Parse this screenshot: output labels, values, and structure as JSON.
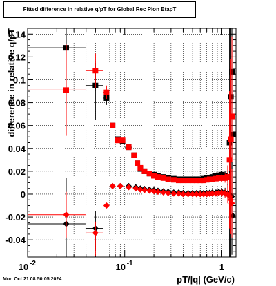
{
  "title": "Fitted difference in relative q/pT for Global Rec Pion EtapT",
  "timestamp": "Mon Oct 21 08:50:05 2024",
  "chart_data": {
    "type": "scatter",
    "title": "Fitted difference in relative q/pT for Global Rec Pion EtapT",
    "xlabel": "pT/|q| (GeV/c)",
    "ylabel": "difference in relative q/pT",
    "xscale": "log",
    "xlim": [
      0.01,
      1.4
    ],
    "ylim": [
      -0.055,
      0.145
    ],
    "grid": true,
    "legend": "none",
    "x_ticks": [
      {
        "v": 0.01,
        "major": true,
        "label": "10",
        "exp": "-2"
      },
      {
        "v": 0.1,
        "major": true,
        "label": "10",
        "exp": "-1"
      },
      {
        "v": 1,
        "major": true,
        "label": "1",
        "exp": ""
      }
    ],
    "y_ticks": [
      "-0.04",
      "-0.02",
      "0",
      "0.02",
      "0.04",
      "0.06",
      "0.08",
      "0.1",
      "0.12",
      "0.14"
    ],
    "y_tick_values": [
      -0.04,
      -0.02,
      0,
      0.02,
      0.04,
      0.06,
      0.08,
      0.1,
      0.12,
      0.14
    ],
    "series": [
      {
        "color": "#000000",
        "marker": "square",
        "points": [
          {
            "x": 0.025,
            "y": 0.128,
            "xlo": 0.01,
            "xhi": 0.0395,
            "elo": 0.075,
            "ehi": 0.02
          },
          {
            "x": 0.05,
            "y": 0.095,
            "xlo": 0.0395,
            "xhi": 0.0605,
            "elo": 0.03,
            "ehi": 0.02
          },
          {
            "x": 0.065,
            "y": 0.084,
            "xlo": 0.0605,
            "xhi": 0.0695,
            "elo": 0.006,
            "ehi": 0.006
          },
          {
            "x": 0.075,
            "y": 0.06,
            "xlo": 0.0705,
            "xhi": 0.0795,
            "elo": 0.0015,
            "ehi": 0.0015
          },
          {
            "x": 0.085,
            "y": 0.048,
            "xlo": 0.0805,
            "xhi": 0.0895,
            "elo": 0.001,
            "ehi": 0.001
          },
          {
            "x": 0.095,
            "y": 0.046,
            "xlo": 0.0905,
            "xhi": 0.0995,
            "elo": 0.001,
            "ehi": 0.001
          },
          {
            "x": 0.11,
            "y": 0.041,
            "xlo": 0.1,
            "xhi": 0.12,
            "elo": 0.001,
            "ehi": 0.001
          },
          {
            "x": 0.125,
            "y": 0.034,
            "elo": 0.001,
            "ehi": 0.001
          },
          {
            "x": 0.135,
            "y": 0.027,
            "elo": 0.001,
            "ehi": 0.001
          },
          {
            "x": 0.145,
            "y": 0.022,
            "elo": 0.001,
            "ehi": 0.001
          },
          {
            "x": 0.16,
            "y": 0.02,
            "elo": 0.001,
            "ehi": 0.001
          },
          {
            "x": 0.18,
            "y": 0.018,
            "elo": 0.001,
            "ehi": 0.001
          },
          {
            "x": 0.2,
            "y": 0.017,
            "elo": 0.001,
            "ehi": 0.001
          },
          {
            "x": 0.22,
            "y": 0.016,
            "elo": 0.001,
            "ehi": 0.001
          },
          {
            "x": 0.25,
            "y": 0.015,
            "elo": 0.001,
            "ehi": 0.001
          },
          {
            "x": 0.28,
            "y": 0.014,
            "elo": 0.001,
            "ehi": 0.001
          },
          {
            "x": 0.32,
            "y": 0.0135,
            "elo": 0.001,
            "ehi": 0.001
          },
          {
            "x": 0.36,
            "y": 0.013,
            "elo": 0.001,
            "ehi": 0.001
          },
          {
            "x": 0.4,
            "y": 0.013,
            "elo": 0.001,
            "ehi": 0.001
          },
          {
            "x": 0.45,
            "y": 0.013,
            "elo": 0.001,
            "ehi": 0.001
          },
          {
            "x": 0.5,
            "y": 0.013,
            "elo": 0.001,
            "ehi": 0.001
          },
          {
            "x": 0.55,
            "y": 0.013,
            "elo": 0.001,
            "ehi": 0.001
          },
          {
            "x": 0.6,
            "y": 0.013,
            "elo": 0.001,
            "ehi": 0.001
          },
          {
            "x": 0.65,
            "y": 0.0135,
            "elo": 0.001,
            "ehi": 0.001
          },
          {
            "x": 0.7,
            "y": 0.014,
            "elo": 0.001,
            "ehi": 0.001
          },
          {
            "x": 0.75,
            "y": 0.0145,
            "elo": 0.001,
            "ehi": 0.001
          },
          {
            "x": 0.8,
            "y": 0.015,
            "elo": 0.001,
            "ehi": 0.001
          },
          {
            "x": 0.87,
            "y": 0.016,
            "elo": 0.001,
            "ehi": 0.001
          },
          {
            "x": 0.93,
            "y": 0.0165,
            "elo": 0.002,
            "ehi": 0.002
          },
          {
            "x": 1.0,
            "y": 0.017,
            "elo": 0.003,
            "ehi": 0.003
          },
          {
            "x": 1.08,
            "y": 0.016,
            "elo": 0.004,
            "ehi": 0.004
          },
          {
            "x": 1.15,
            "y": 0.015,
            "elo": 0.01,
            "ehi": 0.01
          },
          {
            "x": 1.2,
            "y": 0.045,
            "elo": 0.1,
            "ehi": 0.1
          },
          {
            "x": 1.24,
            "y": 0.085,
            "elo": 0.14,
            "ehi": 0.06
          },
          {
            "x": 1.27,
            "y": 0.107,
            "elo": 0.16,
            "ehi": 0.04
          },
          {
            "x": 1.3,
            "y": 0.052,
            "elo": 0.1,
            "ehi": 0.1
          }
        ]
      },
      {
        "color": "#ff0000",
        "marker": "square",
        "points": [
          {
            "x": 0.025,
            "y": 0.091,
            "xlo": 0.01,
            "xhi": 0.0395,
            "elo": 0.04,
            "ehi": 0.04
          },
          {
            "x": 0.05,
            "y": 0.108,
            "xlo": 0.0395,
            "xhi": 0.0605,
            "elo": 0.015,
            "ehi": 0.015
          },
          {
            "x": 0.065,
            "y": 0.089,
            "xlo": 0.0605,
            "xhi": 0.0695,
            "elo": 0.006,
            "ehi": 0.006
          },
          {
            "x": 0.075,
            "y": 0.06,
            "elo": 0.0015,
            "ehi": 0.0015
          },
          {
            "x": 0.085,
            "y": 0.047,
            "elo": 0.001,
            "ehi": 0.001
          },
          {
            "x": 0.095,
            "y": 0.047,
            "elo": 0.001,
            "ehi": 0.001
          },
          {
            "x": 0.11,
            "y": 0.041,
            "elo": 0.001,
            "ehi": 0.001
          },
          {
            "x": 0.125,
            "y": 0.034,
            "elo": 0.001,
            "ehi": 0.001
          },
          {
            "x": 0.135,
            "y": 0.027,
            "elo": 0.001,
            "ehi": 0.001
          },
          {
            "x": 0.145,
            "y": 0.023,
            "elo": 0.001,
            "ehi": 0.001
          },
          {
            "x": 0.16,
            "y": 0.02,
            "elo": 0.001,
            "ehi": 0.001
          },
          {
            "x": 0.18,
            "y": 0.018,
            "elo": 0.001,
            "ehi": 0.001
          },
          {
            "x": 0.2,
            "y": 0.016,
            "elo": 0.001,
            "ehi": 0.001
          },
          {
            "x": 0.22,
            "y": 0.015,
            "elo": 0.001,
            "ehi": 0.001
          },
          {
            "x": 0.25,
            "y": 0.014,
            "elo": 0.001,
            "ehi": 0.001
          },
          {
            "x": 0.28,
            "y": 0.013,
            "elo": 0.001,
            "ehi": 0.001
          },
          {
            "x": 0.32,
            "y": 0.0125,
            "elo": 0.001,
            "ehi": 0.001
          },
          {
            "x": 0.36,
            "y": 0.012,
            "elo": 0.001,
            "ehi": 0.001
          },
          {
            "x": 0.4,
            "y": 0.012,
            "elo": 0.001,
            "ehi": 0.001
          },
          {
            "x": 0.45,
            "y": 0.012,
            "elo": 0.001,
            "ehi": 0.001
          },
          {
            "x": 0.5,
            "y": 0.012,
            "elo": 0.001,
            "ehi": 0.001
          },
          {
            "x": 0.55,
            "y": 0.012,
            "elo": 0.001,
            "ehi": 0.001
          },
          {
            "x": 0.6,
            "y": 0.012,
            "elo": 0.001,
            "ehi": 0.001
          },
          {
            "x": 0.65,
            "y": 0.012,
            "elo": 0.001,
            "ehi": 0.001
          },
          {
            "x": 0.7,
            "y": 0.0125,
            "elo": 0.001,
            "ehi": 0.001
          },
          {
            "x": 0.75,
            "y": 0.013,
            "elo": 0.001,
            "ehi": 0.001
          },
          {
            "x": 0.8,
            "y": 0.013,
            "elo": 0.001,
            "ehi": 0.001
          },
          {
            "x": 0.87,
            "y": 0.0135,
            "elo": 0.001,
            "ehi": 0.001
          },
          {
            "x": 0.93,
            "y": 0.014,
            "elo": 0.002,
            "ehi": 0.002
          },
          {
            "x": 1.0,
            "y": 0.014,
            "elo": 0.003,
            "ehi": 0.003
          },
          {
            "x": 1.08,
            "y": 0.014,
            "elo": 0.004,
            "ehi": 0.004
          },
          {
            "x": 1.15,
            "y": 0.015,
            "elo": 0.01,
            "ehi": 0.01
          },
          {
            "x": 1.2,
            "y": 0.03,
            "elo": 0.06,
            "ehi": 0.06
          },
          {
            "x": 1.24,
            "y": 0.048,
            "elo": 0.07,
            "ehi": 0.07
          },
          {
            "x": 1.27,
            "y": 0.068,
            "elo": 0.07,
            "ehi": 0.07
          }
        ]
      },
      {
        "color": "#000000",
        "marker": "diamond",
        "points": [
          {
            "x": 0.025,
            "y": -0.026,
            "xlo": 0.01,
            "xhi": 0.0395,
            "elo": 0.03,
            "ehi": 0.04
          },
          {
            "x": 0.05,
            "y": -0.03,
            "xlo": 0.0395,
            "xhi": 0.0605,
            "elo": 0.02,
            "ehi": 0.015
          },
          {
            "x": 0.075,
            "y": 0.007,
            "elo": 0.001,
            "ehi": 0.001
          },
          {
            "x": 0.09,
            "y": 0.007,
            "elo": 0.001,
            "ehi": 0.001
          },
          {
            "x": 0.11,
            "y": 0.007,
            "elo": 0.001,
            "ehi": 0.001
          },
          {
            "x": 0.13,
            "y": 0.006,
            "elo": 0.001,
            "ehi": 0.001
          },
          {
            "x": 0.145,
            "y": 0.005,
            "elo": 0.001,
            "ehi": 0.001
          },
          {
            "x": 0.16,
            "y": 0.0045,
            "elo": 0.001,
            "ehi": 0.001
          },
          {
            "x": 0.18,
            "y": 0.004,
            "elo": 0.001,
            "ehi": 0.001
          },
          {
            "x": 0.2,
            "y": 0.0035,
            "elo": 0.001,
            "ehi": 0.001
          },
          {
            "x": 0.22,
            "y": 0.003,
            "elo": 0.001,
            "ehi": 0.001
          },
          {
            "x": 0.25,
            "y": 0.0025,
            "elo": 0.001,
            "ehi": 0.001
          },
          {
            "x": 0.28,
            "y": 0.002,
            "elo": 0.001,
            "ehi": 0.001
          },
          {
            "x": 0.32,
            "y": 0.0015,
            "elo": 0.001,
            "ehi": 0.001
          },
          {
            "x": 0.36,
            "y": 0.0015,
            "elo": 0.001,
            "ehi": 0.001
          },
          {
            "x": 0.4,
            "y": 0.001,
            "elo": 0.001,
            "ehi": 0.001
          },
          {
            "x": 0.45,
            "y": 0.001,
            "elo": 0.001,
            "ehi": 0.001
          },
          {
            "x": 0.5,
            "y": 0.001,
            "elo": 0.001,
            "ehi": 0.001
          },
          {
            "x": 0.55,
            "y": 0.001,
            "elo": 0.001,
            "ehi": 0.001
          },
          {
            "x": 0.6,
            "y": 0.001,
            "elo": 0.001,
            "ehi": 0.001
          },
          {
            "x": 0.65,
            "y": 0.001,
            "elo": 0.001,
            "ehi": 0.001
          },
          {
            "x": 0.7,
            "y": 0.001,
            "elo": 0.001,
            "ehi": 0.001
          },
          {
            "x": 0.75,
            "y": 0.0012,
            "elo": 0.001,
            "ehi": 0.001
          },
          {
            "x": 0.8,
            "y": 0.0015,
            "elo": 0.001,
            "ehi": 0.001
          },
          {
            "x": 0.87,
            "y": 0.0015,
            "elo": 0.001,
            "ehi": 0.001
          },
          {
            "x": 0.93,
            "y": 0.002,
            "elo": 0.002,
            "ehi": 0.002
          },
          {
            "x": 1.0,
            "y": 0.002,
            "elo": 0.003,
            "ehi": 0.003
          },
          {
            "x": 1.08,
            "y": 0.0015,
            "elo": 0.004,
            "ehi": 0.004
          },
          {
            "x": 1.15,
            "y": 0.001,
            "elo": 0.008,
            "ehi": 0.008
          },
          {
            "x": 1.2,
            "y": 0.0,
            "elo": 0.02,
            "ehi": 0.02
          },
          {
            "x": 1.27,
            "y": -0.002,
            "elo": 0.03,
            "ehi": 0.03
          },
          {
            "x": 1.3,
            "y": -0.019,
            "elo": 0.03,
            "ehi": 0.03
          }
        ]
      },
      {
        "color": "#ff0000",
        "marker": "diamond",
        "points": [
          {
            "x": 0.025,
            "y": -0.018,
            "xlo": 0.01,
            "xhi": 0.0395,
            "elo": 0.02,
            "ehi": 0.02
          },
          {
            "x": 0.05,
            "y": -0.034,
            "xlo": 0.0395,
            "xhi": 0.0605,
            "elo": 0.02,
            "ehi": 0.01
          },
          {
            "x": 0.065,
            "y": -0.01,
            "elo": 0.001,
            "ehi": 0.001
          },
          {
            "x": 0.075,
            "y": 0.007,
            "elo": 0.001,
            "ehi": 0.001
          },
          {
            "x": 0.09,
            "y": 0.007,
            "elo": 0.001,
            "ehi": 0.001
          },
          {
            "x": 0.11,
            "y": 0.006,
            "elo": 0.001,
            "ehi": 0.001
          },
          {
            "x": 0.13,
            "y": 0.005,
            "elo": 0.001,
            "ehi": 0.001
          },
          {
            "x": 0.145,
            "y": 0.004,
            "elo": 0.001,
            "ehi": 0.001
          },
          {
            "x": 0.16,
            "y": 0.0035,
            "elo": 0.001,
            "ehi": 0.001
          },
          {
            "x": 0.18,
            "y": 0.003,
            "elo": 0.001,
            "ehi": 0.001
          },
          {
            "x": 0.2,
            "y": 0.0025,
            "elo": 0.001,
            "ehi": 0.001
          },
          {
            "x": 0.22,
            "y": 0.002,
            "elo": 0.001,
            "ehi": 0.001
          },
          {
            "x": 0.25,
            "y": 0.0015,
            "elo": 0.001,
            "ehi": 0.001
          },
          {
            "x": 0.28,
            "y": 0.001,
            "elo": 0.001,
            "ehi": 0.001
          },
          {
            "x": 0.32,
            "y": 0.0005,
            "elo": 0.001,
            "ehi": 0.001
          },
          {
            "x": 0.36,
            "y": 0.0005,
            "elo": 0.001,
            "ehi": 0.001
          },
          {
            "x": 0.4,
            "y": 0.0,
            "elo": 0.001,
            "ehi": 0.001
          },
          {
            "x": 0.45,
            "y": 0.0,
            "elo": 0.001,
            "ehi": 0.001
          },
          {
            "x": 0.5,
            "y": 0.0,
            "elo": 0.001,
            "ehi": 0.001
          },
          {
            "x": 0.55,
            "y": 0.0,
            "elo": 0.001,
            "ehi": 0.001
          },
          {
            "x": 0.6,
            "y": 0.0,
            "elo": 0.001,
            "ehi": 0.001
          },
          {
            "x": 0.65,
            "y": 0.0,
            "elo": 0.001,
            "ehi": 0.001
          },
          {
            "x": 0.7,
            "y": 0.0,
            "elo": 0.001,
            "ehi": 0.001
          },
          {
            "x": 0.75,
            "y": 0.0003,
            "elo": 0.001,
            "ehi": 0.001
          },
          {
            "x": 0.8,
            "y": 0.0005,
            "elo": 0.001,
            "ehi": 0.001
          },
          {
            "x": 0.87,
            "y": 0.0005,
            "elo": 0.001,
            "ehi": 0.001
          },
          {
            "x": 0.93,
            "y": 0.001,
            "elo": 0.002,
            "ehi": 0.002
          },
          {
            "x": 1.0,
            "y": 0.001,
            "elo": 0.003,
            "ehi": 0.003
          },
          {
            "x": 1.08,
            "y": 0.0005,
            "elo": 0.004,
            "ehi": 0.004
          },
          {
            "x": 1.15,
            "y": 0.0,
            "elo": 0.008,
            "ehi": 0.008
          },
          {
            "x": 1.2,
            "y": -0.002,
            "elo": 0.02,
            "ehi": 0.02
          },
          {
            "x": 1.24,
            "y": -0.005,
            "elo": 0.03,
            "ehi": 0.03
          },
          {
            "x": 1.27,
            "y": -0.008,
            "elo": 0.03,
            "ehi": 0.03
          }
        ]
      }
    ]
  }
}
